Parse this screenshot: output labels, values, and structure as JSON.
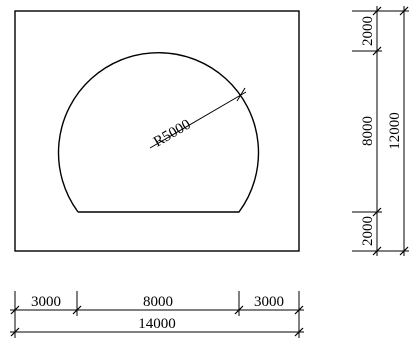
{
  "drawing": {
    "radius_label": "R5000"
  },
  "dimensions": {
    "horizontal": {
      "left_segment": "3000",
      "middle_segment": "8000",
      "right_segment": "3000",
      "total": "14000"
    },
    "vertical": {
      "top_segment": "2000",
      "middle_segment": "8000",
      "bottom_segment": "2000",
      "total": "12000"
    }
  }
}
